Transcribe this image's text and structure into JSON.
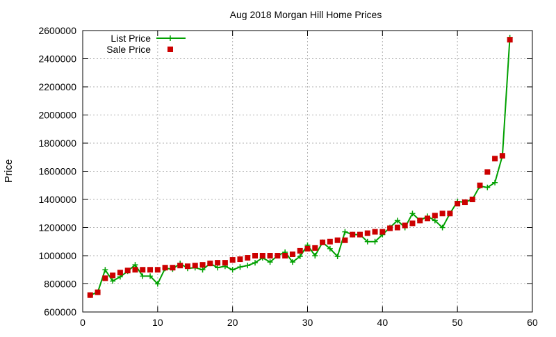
{
  "chart_data": {
    "type": "scatter",
    "title": "Aug 2018 Morgan Hill Home Prices",
    "xlabel": "",
    "ylabel": "Price",
    "xlim": [
      0,
      60
    ],
    "ylim": [
      600000,
      2600000
    ],
    "xticks": [
      0,
      10,
      20,
      30,
      40,
      50,
      60
    ],
    "yticks": [
      600000,
      800000,
      1000000,
      1200000,
      1400000,
      1600000,
      1800000,
      2000000,
      2200000,
      2400000,
      2600000
    ],
    "grid": true,
    "legend_position": "top-left",
    "series": [
      {
        "name": "List Price",
        "style": "line+cross",
        "color": "#00a000",
        "x": [
          1,
          2,
          3,
          4,
          5,
          6,
          7,
          8,
          9,
          10,
          11,
          12,
          13,
          14,
          15,
          16,
          17,
          18,
          19,
          20,
          21,
          22,
          23,
          24,
          25,
          26,
          27,
          28,
          29,
          30,
          31,
          32,
          33,
          34,
          35,
          36,
          37,
          38,
          39,
          40,
          41,
          42,
          43,
          44,
          45,
          46,
          47,
          48,
          49,
          50,
          51,
          52,
          53,
          54,
          55,
          56,
          57
        ],
        "values": [
          720000,
          740000,
          900000,
          820000,
          850000,
          890000,
          935000,
          855000,
          855000,
          800000,
          910000,
          905000,
          945000,
          910000,
          915000,
          900000,
          945000,
          915000,
          925000,
          900000,
          920000,
          930000,
          950000,
          985000,
          955000,
          1000000,
          1025000,
          955000,
          995000,
          1075000,
          1000000,
          1095000,
          1050000,
          995000,
          1170000,
          1150000,
          1150000,
          1100000,
          1100000,
          1150000,
          1200000,
          1250000,
          1200000,
          1300000,
          1250000,
          1280000,
          1250000,
          1200000,
          1300000,
          1385000,
          1380000,
          1400000,
          1495000,
          1485000,
          1520000,
          1710000,
          2550000
        ]
      },
      {
        "name": "Sale Price",
        "style": "square",
        "color": "#cc0000",
        "x": [
          1,
          2,
          3,
          4,
          5,
          6,
          7,
          8,
          9,
          10,
          11,
          12,
          13,
          14,
          15,
          16,
          17,
          18,
          19,
          20,
          21,
          22,
          23,
          24,
          25,
          26,
          27,
          28,
          29,
          30,
          31,
          32,
          33,
          34,
          35,
          36,
          37,
          38,
          39,
          40,
          41,
          42,
          43,
          44,
          45,
          46,
          47,
          48,
          49,
          50,
          51,
          52,
          53,
          54,
          55,
          56,
          57
        ],
        "values": [
          720000,
          740000,
          840000,
          860000,
          880000,
          895000,
          900000,
          900000,
          900000,
          900000,
          915000,
          915000,
          930000,
          925000,
          930000,
          935000,
          945000,
          950000,
          950000,
          970000,
          975000,
          985000,
          1000000,
          1000000,
          1000000,
          1000000,
          1000000,
          1010000,
          1035000,
          1050000,
          1055000,
          1095000,
          1100000,
          1110000,
          1110000,
          1150000,
          1150000,
          1160000,
          1170000,
          1170000,
          1195000,
          1200000,
          1215000,
          1230000,
          1250000,
          1265000,
          1285000,
          1300000,
          1300000,
          1370000,
          1380000,
          1400000,
          1500000,
          1595000,
          1690000,
          1710000,
          2535000
        ]
      }
    ]
  }
}
